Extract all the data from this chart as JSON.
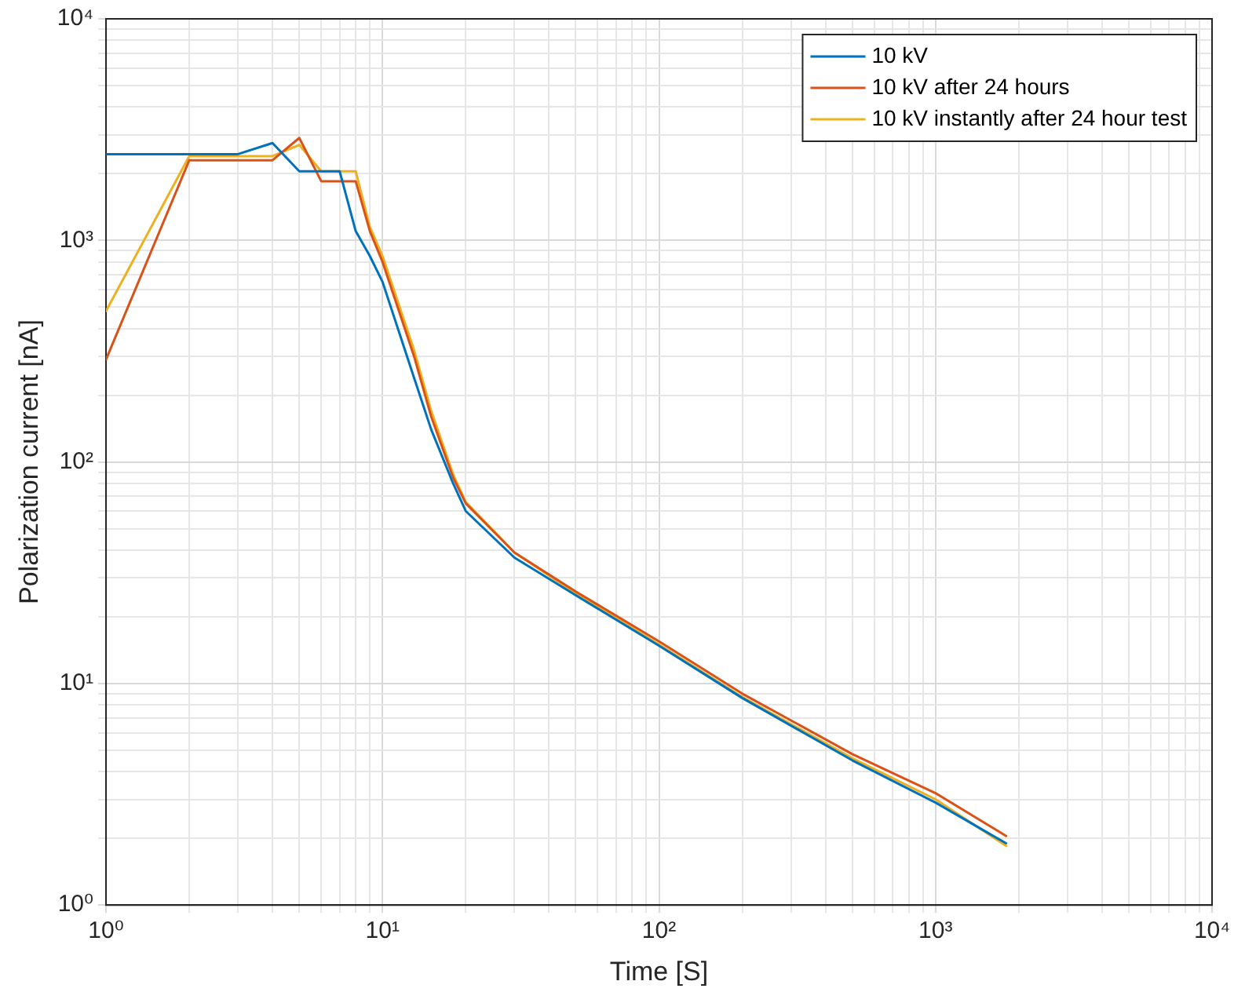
{
  "chart_data": {
    "type": "line",
    "xlabel": "Time [S]",
    "ylabel": "Polarization current [nA]",
    "log": "xy",
    "grid": true,
    "legend": "top right",
    "marker": "none",
    "line_style": "solid",
    "xlim": [
      1,
      10000
    ],
    "ylim": [
      1,
      10000
    ],
    "xticks": [
      {
        "value": 1,
        "label": "10⁰"
      },
      {
        "value": 10,
        "label": "10¹"
      },
      {
        "value": 100,
        "label": "10²"
      },
      {
        "value": 1000,
        "label": "10³"
      },
      {
        "value": 10000,
        "label": "10⁴"
      }
    ],
    "yticks": [
      {
        "value": 1,
        "label": "10⁰"
      },
      {
        "value": 10,
        "label": "10¹"
      },
      {
        "value": 100,
        "label": "10²"
      },
      {
        "value": 1000,
        "label": "10³"
      },
      {
        "value": 10000,
        "label": "10⁴"
      }
    ],
    "x": [
      1,
      2,
      3,
      4,
      5,
      6,
      7,
      8,
      9,
      10,
      13,
      15,
      18,
      20,
      30,
      50,
      100,
      200,
      500,
      1000,
      1800
    ],
    "series": [
      {
        "name": "10 kV",
        "color": "#0072bd",
        "values": [
          2450,
          2450,
          2450,
          2750,
          2050,
          2050,
          2050,
          1100,
          850,
          650,
          240,
          140,
          80,
          60,
          37,
          25,
          14.8,
          8.6,
          4.5,
          2.9,
          1.9
        ]
      },
      {
        "name": "10 kV after 24 hours",
        "color": "#d95319",
        "values": [
          290,
          2300,
          2300,
          2300,
          2900,
          1850,
          1850,
          1850,
          1100,
          800,
          300,
          160,
          85,
          65,
          39,
          26,
          15.5,
          9.0,
          4.8,
          3.2,
          2.05
        ]
      },
      {
        "name": "10 kV instantly after 24 hour test",
        "color": "#edb120",
        "values": [
          480,
          2400,
          2400,
          2400,
          2700,
          2050,
          2050,
          2050,
          1150,
          850,
          320,
          170,
          88,
          66,
          39,
          25.5,
          15,
          8.7,
          4.6,
          3.0,
          1.85
        ]
      }
    ]
  }
}
